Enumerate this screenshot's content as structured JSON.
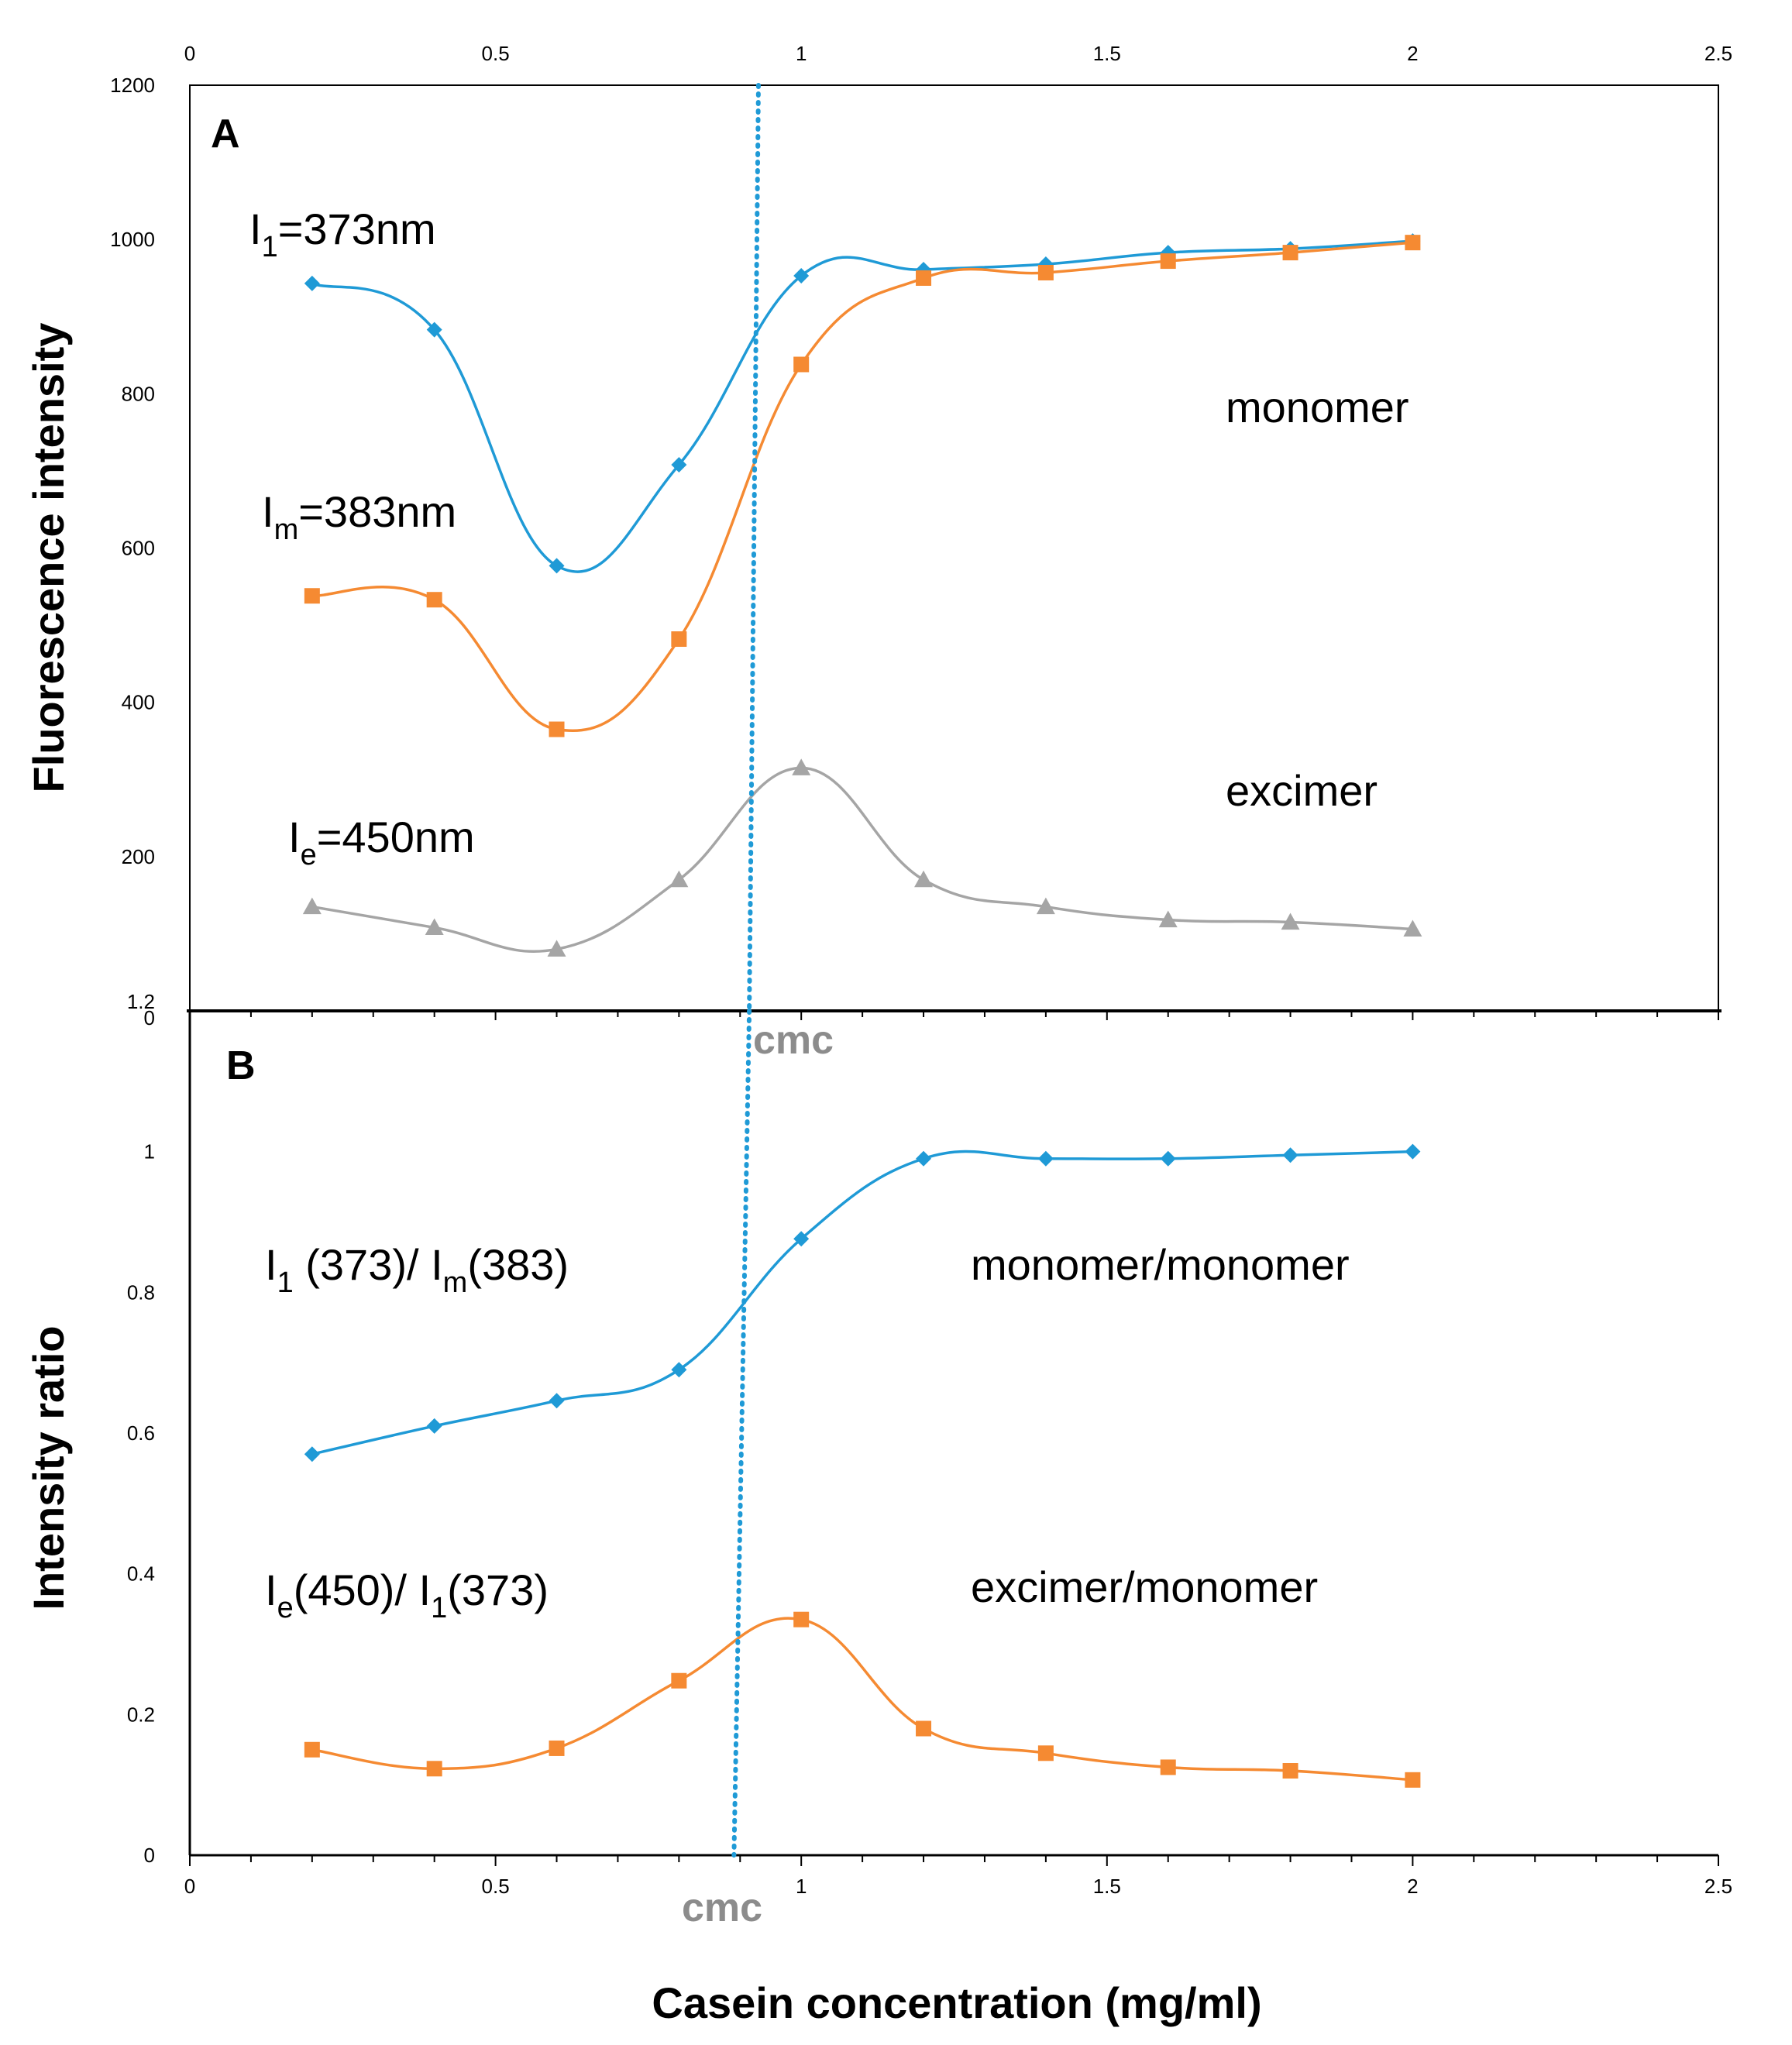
{
  "chart_data": [
    {
      "panel": "A",
      "type": "line",
      "ylabel": "Fluorescence intensity",
      "xlim": [
        0,
        2.5
      ],
      "ylim": [
        0,
        1200
      ],
      "x_ticks": [
        "0",
        "0.5",
        "1",
        "1.5",
        "2",
        "2.5"
      ],
      "y_ticks": [
        "1.2",
        "200",
        "400",
        "600",
        "800",
        "1000",
        "1200"
      ],
      "bottom_axis_label_0": "0",
      "grid": false,
      "x": [
        0.2,
        0.4,
        0.6,
        0.8,
        1.0,
        1.2,
        1.4,
        1.6,
        1.8,
        2.0
      ],
      "series": [
        {
          "name": "I1=373nm",
          "label_main": "I",
          "label_sub": "1",
          "label_rest": "=373nm",
          "color": "#1f9ad6",
          "marker": "diamond",
          "values": [
            943,
            883,
            577,
            708,
            953,
            961,
            968,
            983,
            988,
            998
          ]
        },
        {
          "name": "Im=383nm",
          "label_main": "I",
          "label_sub": "m",
          "label_rest": "=383nm",
          "color": "#f58a32",
          "marker": "square",
          "values": [
            538,
            533,
            365,
            482,
            838,
            950,
            957,
            972,
            983,
            996
          ]
        },
        {
          "name": "Ie=450nm",
          "label_main": "I",
          "label_sub": "e",
          "label_rest": "=450nm",
          "color": "#a5a5a5",
          "marker": "triangle",
          "values": [
            135,
            108,
            80,
            170,
            315,
            170,
            135,
            118,
            115,
            106
          ]
        }
      ],
      "annotations": [
        "monomer",
        "excimer"
      ]
    },
    {
      "panel": "B",
      "type": "line",
      "ylabel": "Intensity ratio",
      "xlabel": "Casein concentration (mg/ml)",
      "xlim": [
        0,
        2.5
      ],
      "ylim": [
        0,
        1.2
      ],
      "x_ticks": [
        "0",
        "0.5",
        "1",
        "1.5",
        "2",
        "2.5"
      ],
      "y_ticks": [
        "0",
        "0.2",
        "0.4",
        "0.6",
        "0.8",
        "1"
      ],
      "grid": false,
      "x": [
        0.2,
        0.4,
        0.6,
        0.8,
        1.0,
        1.2,
        1.4,
        1.6,
        1.8,
        2.0
      ],
      "series": [
        {
          "name": "I1 (373)/ Im(383)",
          "color": "#1f9ad6",
          "marker": "diamond",
          "values": [
            0.57,
            0.61,
            0.646,
            0.69,
            0.876,
            0.99,
            0.99,
            0.99,
            0.995,
            1.0
          ]
        },
        {
          "name": "Ie(450)/ I1(373)",
          "color": "#f58a32",
          "marker": "square",
          "values": [
            0.15,
            0.123,
            0.152,
            0.248,
            0.335,
            0.18,
            0.145,
            0.125,
            0.12,
            0.107
          ]
        }
      ],
      "annotations": [
        "monomer/monomer",
        "excimer/monomer"
      ]
    }
  ],
  "cmc": {
    "label": "cmc",
    "x_top": 0.93,
    "x_bottom": 0.89,
    "color": "#1f9ad6"
  },
  "labels": {
    "panel_a": "A",
    "panel_b": "B",
    "a_i1_main": "I",
    "a_i1_sub": "1",
    "a_i1_rest": "=373nm",
    "a_im_main": "I",
    "a_im_sub": "m",
    "a_im_rest": "=383nm",
    "a_ie_main": "I",
    "a_ie_sub": "e",
    "a_ie_rest": "=450nm",
    "a_monomer": "monomer",
    "a_excimer": "excimer",
    "b_ratio1_a": "I",
    "b_ratio1_sub1": "1",
    "b_ratio1_b": " (373)/ I",
    "b_ratio1_sub2": "m",
    "b_ratio1_c": "(383)",
    "b_ratio2_a": "I",
    "b_ratio2_sub1": "e",
    "b_ratio2_b": "(450)/ I",
    "b_ratio2_sub2": "1",
    "b_ratio2_c": "(373)",
    "b_mono_mono": "monomer/monomer",
    "b_exc_mono": "excimer/monomer",
    "ylabel_a": "Fluorescence intensity",
    "ylabel_b": "Intensity ratio",
    "xlabel": "Casein concentration (mg/ml)",
    "cmc_top": "cmc",
    "cmc_bottom": "cmc"
  }
}
